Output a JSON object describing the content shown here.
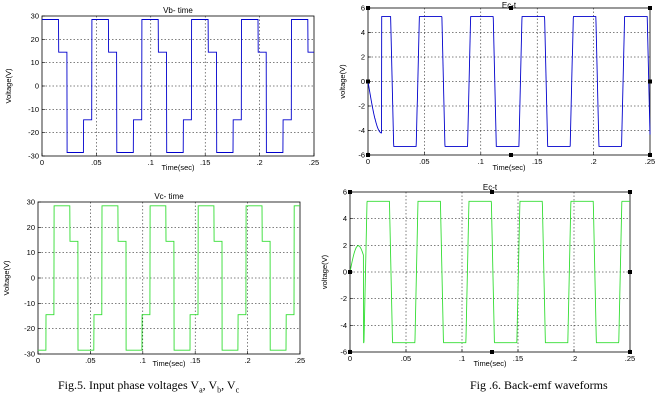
{
  "figure_captions": {
    "left": {
      "prefix": "Fig.5.  Input phase voltages V",
      "s1": "a",
      "s2": "b",
      "s3": "c",
      "sep": ", V",
      "sep2": ", V"
    },
    "right": "Fig .6. Back-emf waveforms"
  },
  "colors": {
    "blue": "#0000cc",
    "green": "#33dd33",
    "axis": "#000000",
    "grid": "#000000"
  },
  "chart_data": [
    {
      "id": "vb",
      "type": "line",
      "title": "Vb- time",
      "xlabel": "Time(sec)",
      "ylabel": "Voltage(V)",
      "xlim": [
        0,
        0.25
      ],
      "ylim": [
        -30,
        30
      ],
      "xticks": [
        0,
        0.05,
        0.1,
        0.15,
        0.2,
        0.25
      ],
      "yticks": [
        -30,
        -20,
        -10,
        0,
        10,
        20,
        30
      ],
      "grid": true,
      "color": "blue",
      "period": 0.04583,
      "phase": 0.0,
      "levels": [
        28.5,
        14.5,
        -14.5,
        -28.5
      ],
      "description_levels": "six-step stepped waveform, levels ±14.5 and ±28.5 V"
    },
    {
      "id": "ea",
      "type": "line",
      "title": "Ec-t",
      "xlabel": "Time(sec)",
      "ylabel": "voltage(V)",
      "xlim": [
        0,
        0.25
      ],
      "ylim": [
        -6,
        6
      ],
      "xticks": [
        0,
        0.05,
        0.1,
        0.15,
        0.2,
        0.25
      ],
      "yticks": [
        -6,
        -4,
        -2,
        0,
        2,
        4,
        6
      ],
      "grid": true,
      "color": "blue",
      "period": 0.0455,
      "phase": 0.0,
      "amplitude": 5.3
    },
    {
      "id": "vc",
      "type": "line",
      "title": "Vc- time",
      "xlabel": "Time(sec)",
      "ylabel": "Voltage(V)",
      "xlim": [
        0,
        0.25
      ],
      "ylim": [
        -30,
        30
      ],
      "xticks": [
        0,
        0.05,
        0.1,
        0.15,
        0.2,
        0.25
      ],
      "yticks": [
        -30,
        -20,
        -10,
        0,
        10,
        20,
        30
      ],
      "grid": true,
      "color": "green",
      "period": 0.04583,
      "phase": 0.0152,
      "levels": [
        28.5,
        14.5,
        -14.5,
        -28.5
      ]
    },
    {
      "id": "ec",
      "type": "line",
      "title": "Ec-t",
      "xlabel": "Time(sec)",
      "ylabel": "voltage(V)",
      "xlim": [
        0,
        0.25
      ],
      "ylim": [
        -6,
        6
      ],
      "xticks": [
        0,
        0.05,
        0.1,
        0.15,
        0.2,
        0.25
      ],
      "yticks": [
        -6,
        -4,
        -2,
        0,
        2,
        4,
        6
      ],
      "grid": true,
      "color": "green",
      "period": 0.0455,
      "phase": 0.0152,
      "amplitude": 5.3
    }
  ]
}
